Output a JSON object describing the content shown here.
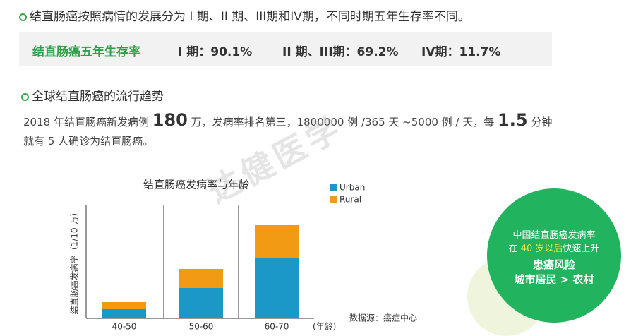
{
  "heading1": "结直肠癌按照病情的发展分为 I 期、II 期、III期和IV期，不同时期五年生存率不同。",
  "survival": {
    "label": "结直肠癌五年生存率",
    "stage1": "I 期：90.1%",
    "stage23": "II 期、III期：69.2%",
    "stage4": "IV期：11.7%"
  },
  "heading2": "全球结直肠癌的流行趋势",
  "paragraph": {
    "part1": "2018 年结直肠癌新发病例 ",
    "num1": "180",
    "part2": " 万，发病率排名第三，1800000 例 /365 天 ~5000 例 / 天，每 ",
    "num2": "1.5",
    "part3": " 分钟",
    "line2": "就有 5 人确诊为结直肠癌。"
  },
  "watermark": "达健医学",
  "callout": {
    "line1": "中国结直肠癌发病率",
    "line2a": "在 ",
    "line2b": "40 岁以后",
    "line2c": "快速上升",
    "line3": "患癌风险",
    "line4": "城市居民 > 农村"
  },
  "chart_data": {
    "type": "stacked_bar",
    "title": "结直肠癌发病率与年龄",
    "y_label": "结直肠癌发病率（1/10 万）",
    "x_label": "(年龄)",
    "source": "数据源：癌症中心",
    "categories": [
      "40-50",
      "50-60",
      "60-70"
    ],
    "series": [
      {
        "name": "Urban",
        "color": "#1b98c7",
        "values": [
          13,
          43,
          86
        ]
      },
      {
        "name": "Rural",
        "color": "#f39a14",
        "values": [
          10,
          27,
          46
        ]
      }
    ],
    "ylim": [
      0,
      161
    ]
  }
}
